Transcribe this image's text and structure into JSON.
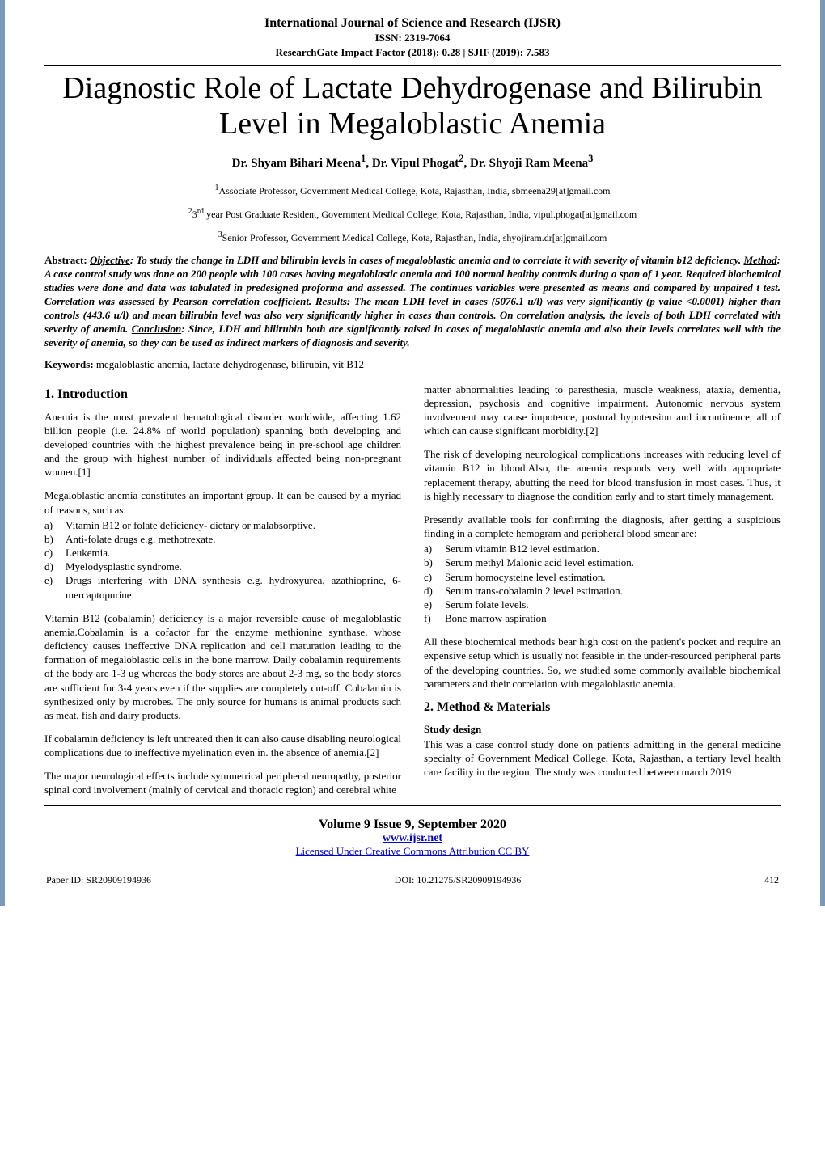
{
  "journal": {
    "name": "International Journal of Science and Research (IJSR)",
    "issn": "ISSN: 2319-7064",
    "impact": "ResearchGate Impact Factor (2018): 0.28 | SJIF (2019): 7.583"
  },
  "title": "Diagnostic Role of Lactate Dehydrogenase and Bilirubin Level in Megaloblastic Anemia",
  "authors_html": "Dr. Shyam Bihari Meena<sup>1</sup>, Dr. Vipul Phogat<sup>2</sup>, Dr. Shyoji Ram Meena<sup>3</sup>",
  "affiliations": [
    "<sup>1</sup>Associate Professor, Government Medical College, Kota, Rajasthan, India, sbmeena29[at]gmail.com",
    "<sup>2</sup>3<sup>rd</sup> year Post Graduate Resident, Government Medical College, Kota, Rajasthan, India, vipul.phogat[at]gmail.com",
    "<sup>3</sup>Senior Professor, Government Medical College, Kota, Rajasthan, India, shyojiram.dr[at]gmail.com"
  ],
  "abstract": {
    "label": "Abstract:",
    "sections": {
      "Objective": "To study the change in LDH and bilirubin levels in cases of megaloblastic anemia and to correlate it with severity of vitamin b12 deficiency.",
      "Method": "A case control study was done on 200 people with 100 cases having megaloblastic anemia and 100 normal healthy controls during a span of 1 year. Required biochemical studies were done and data was tabulated in predesigned proforma and assessed. The continues variables were presented as means and compared by unpaired t test. Correlation was assessed by Pearson correlation coefficient.",
      "Results": "The mean LDH level in cases (5076.1 u/l) was very significantly (p value <0.0001) higher than controls (443.6 u/l) and mean bilirubin level was also very significantly higher in cases than controls. On correlation analysis, the levels of both LDH correlated with severity of anemia.",
      "Conclusion": "Since, LDH and bilirubin both are significantly raised in cases of megaloblastic anemia and also their levels correlates well with the severity of anemia, so they can be used as indirect markers of diagnosis and severity."
    }
  },
  "keywords": {
    "label": "Keywords:",
    "text": "megaloblastic anemia, lactate dehydrogenase, bilirubin, vit B12"
  },
  "body": {
    "left": {
      "h1": "1. Introduction",
      "p1": "Anemia is the most prevalent hematological disorder worldwide, affecting 1.62 billion people (i.e. 24.8% of world population) spanning both developing and developed countries with the highest prevalence being in pre-school age children and the group with highest number of individuals affected being non-pregnant women.[1]",
      "p2": "Megaloblastic anemia constitutes an important group. It can be caused by a myriad of reasons, such as:",
      "list1": [
        {
          "m": "a)",
          "t": "Vitamin B12 or folate deficiency- dietary or malabsorptive."
        },
        {
          "m": "b)",
          "t": "Anti-folate drugs e.g. methotrexate."
        },
        {
          "m": "c)",
          "t": "Leukemia."
        },
        {
          "m": "d)",
          "t": "Myelodysplastic syndrome."
        },
        {
          "m": "e)",
          "t": "Drugs interfering with DNA synthesis e.g. hydroxyurea, azathioprine, 6-mercaptopurine."
        }
      ],
      "p3": "Vitamin B12 (cobalamin) deficiency is a major reversible cause of megaloblastic anemia.Cobalamin is a cofactor for the enzyme methionine synthase, whose deficiency causes ineffective DNA replication and cell maturation leading to the formation of megaloblastic cells in the bone marrow. Daily cobalamin requirements of the body are 1-3 ug whereas the body stores are about 2-3 mg, so the body stores are sufficient for 3-4 years even if the supplies are completely cut-off. Cobalamin is synthesized only by microbes. The only source for humans is animal products such as meat, fish and dairy products.",
      "p4": "If cobalamin deficiency is left untreated then it can also cause disabling neurological complications due to ineffective myelination even in. the absence of anemia.[2]",
      "p5": "The major neurological effects include symmetrical peripheral neuropathy, posterior spinal cord involvement (mainly of cervical and thoracic region) and cerebral white"
    },
    "right": {
      "p1": "matter abnormalities leading to paresthesia, muscle weakness, ataxia, dementia, depression, psychosis and cognitive impairment. Autonomic nervous system involvement may cause impotence, postural hypotension and incontinence, all of which can cause significant morbidity.[2]",
      "p2": "The risk of developing neurological complications increases with reducing level of vitamin B12 in blood.Also, the anemia responds very well with appropriate replacement therapy, abutting the need for blood transfusion in most cases. Thus, it is highly necessary to diagnose the condition early and to start timely management.",
      "p3": "Presently available tools for confirming the diagnosis, after getting a suspicious finding in a complete hemogram and peripheral blood smear are:",
      "list2": [
        {
          "m": "a)",
          "t": "Serum vitamin B12 level estimation."
        },
        {
          "m": "b)",
          "t": "Serum methyl Malonic acid level estimation."
        },
        {
          "m": "c)",
          "t": "Serum homocysteine level estimation."
        },
        {
          "m": "d)",
          "t": "Serum trans-cobalamin 2 level estimation."
        },
        {
          "m": "e)",
          "t": "Serum folate levels."
        },
        {
          "m": "f)",
          "t": "Bone marrow aspiration"
        }
      ],
      "p4": "All these biochemical methods bear high cost on the patient's pocket and require an expensive setup which is usually not feasible in the under-resourced peripheral parts of the developing countries. So, we studied some commonly available biochemical parameters and their correlation with megaloblastic anemia.",
      "h2": "2. Method & Materials",
      "sub": "Study design",
      "p5": "This was a case control study done on patients admitting in the general medicine specialty of Government Medical College, Kota, Rajasthan, a tertiary level health care facility in the region. The study was conducted between march 2019"
    }
  },
  "footer": {
    "volume": "Volume 9 Issue 9, September 2020",
    "url": "www.ijsr.net",
    "license": "Licensed Under Creative Commons Attribution CC BY",
    "paper_id": "Paper ID: SR20909194936",
    "doi": "DOI: 10.21275/SR20909194936",
    "page_no": "412"
  },
  "colors": {
    "edge": "#7a99b8",
    "link": "#0000cc",
    "text": "#000000",
    "background": "#ffffff"
  }
}
